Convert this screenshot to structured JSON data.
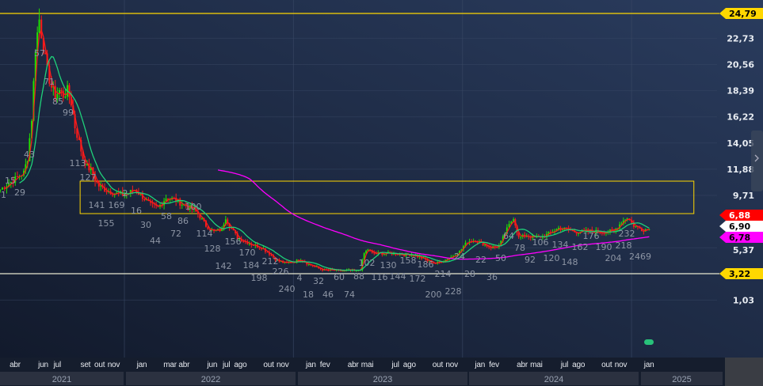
{
  "chart_data": {
    "type": "candlestick",
    "ylim": [
      0,
      25.5
    ],
    "y_ticks": [
      "22,73",
      "20,56",
      "18,39",
      "16,22",
      "14,05",
      "11,88",
      "9,71",
      "5,37",
      "1,03"
    ],
    "y_tick_values": [
      22.73,
      20.56,
      18.39,
      16.22,
      14.05,
      11.88,
      9.71,
      5.37,
      1.03
    ],
    "grid": true,
    "month_labels": [
      {
        "label": "abr",
        "date": "2021-04-01"
      },
      {
        "label": "jun",
        "date": "2021-06-01"
      },
      {
        "label": "jul",
        "date": "2021-07-01"
      },
      {
        "label": "set",
        "date": "2021-09-01"
      },
      {
        "label": "out",
        "date": "2021-10-01"
      },
      {
        "label": "nov",
        "date": "2021-11-01"
      },
      {
        "label": "jan",
        "date": "2022-01-01"
      },
      {
        "label": "mar",
        "date": "2022-03-01"
      },
      {
        "label": "abr",
        "date": "2022-04-01"
      },
      {
        "label": "jun",
        "date": "2022-06-01"
      },
      {
        "label": "jul",
        "date": "2022-07-01"
      },
      {
        "label": "ago",
        "date": "2022-08-01"
      },
      {
        "label": "out",
        "date": "2022-10-01"
      },
      {
        "label": "nov",
        "date": "2022-11-01"
      },
      {
        "label": "jan",
        "date": "2023-01-01"
      },
      {
        "label": "fev",
        "date": "2023-02-01"
      },
      {
        "label": "abr",
        "date": "2023-04-01"
      },
      {
        "label": "mai",
        "date": "2023-05-01"
      },
      {
        "label": "jul",
        "date": "2023-07-01"
      },
      {
        "label": "ago",
        "date": "2023-08-01"
      },
      {
        "label": "out",
        "date": "2023-10-01"
      },
      {
        "label": "nov",
        "date": "2023-11-01"
      },
      {
        "label": "jan",
        "date": "2024-01-01"
      },
      {
        "label": "fev",
        "date": "2024-02-01"
      },
      {
        "label": "abr",
        "date": "2024-04-01"
      },
      {
        "label": "mai",
        "date": "2024-05-01"
      },
      {
        "label": "jul",
        "date": "2024-07-01"
      },
      {
        "label": "ago",
        "date": "2024-08-01"
      },
      {
        "label": "out",
        "date": "2024-10-01"
      },
      {
        "label": "nov",
        "date": "2024-11-01"
      },
      {
        "label": "jan",
        "date": "2025-01-01"
      }
    ],
    "years": [
      "2021",
      "2022",
      "2023",
      "2024",
      "2025"
    ],
    "closes": [
      [
        "2021-03-08",
        10.2
      ],
      [
        "2021-04-28",
        11.6
      ],
      [
        "2021-05-06",
        12.8
      ],
      [
        "2021-05-15",
        16.1
      ],
      [
        "2021-05-23",
        22.0
      ],
      [
        "2021-06-01",
        24.3
      ],
      [
        "2021-06-10",
        22.0
      ],
      [
        "2021-06-18",
        20.0
      ],
      [
        "2021-06-27",
        18.7
      ],
      [
        "2021-07-05",
        18.0
      ],
      [
        "2021-07-14",
        18.4
      ],
      [
        "2021-07-22",
        18.0
      ],
      [
        "2021-07-31",
        18.4
      ],
      [
        "2021-08-09",
        17.4
      ],
      [
        "2021-08-17",
        15.4
      ],
      [
        "2021-08-26",
        14.1
      ],
      [
        "2021-09-04",
        12.8
      ],
      [
        "2021-09-13",
        12.1
      ],
      [
        "2021-09-21",
        11.8
      ],
      [
        "2021-09-30",
        11.0
      ],
      [
        "2021-10-08",
        10.5
      ],
      [
        "2021-10-16",
        10.3
      ],
      [
        "2021-11-03",
        10.0
      ],
      [
        "2021-11-20",
        9.8
      ],
      [
        "2021-12-07",
        9.8
      ],
      [
        "2021-12-24",
        10.2
      ],
      [
        "2022-01-11",
        9.6
      ],
      [
        "2022-01-28",
        8.9
      ],
      [
        "2022-02-14",
        8.7
      ],
      [
        "2022-03-01",
        9.5
      ],
      [
        "2022-03-18",
        9.4
      ],
      [
        "2022-04-05",
        9.0
      ],
      [
        "2022-04-22",
        8.7
      ],
      [
        "2022-05-09",
        8.2
      ],
      [
        "2022-05-26",
        7.2
      ],
      [
        "2022-06-13",
        6.7
      ],
      [
        "2022-06-30",
        6.9
      ],
      [
        "2022-07-08",
        7.9
      ],
      [
        "2022-07-16",
        7.2
      ],
      [
        "2022-08-03",
        6.2
      ],
      [
        "2022-08-20",
        5.9
      ],
      [
        "2022-09-07",
        5.6
      ],
      [
        "2022-09-24",
        5.4
      ],
      [
        "2022-10-11",
        4.9
      ],
      [
        "2022-10-28",
        4.3
      ],
      [
        "2022-11-14",
        4.1
      ],
      [
        "2022-12-01",
        4.2
      ],
      [
        "2022-12-18",
        4.4
      ],
      [
        "2023-01-05",
        4.0
      ],
      [
        "2023-01-22",
        3.74
      ],
      [
        "2023-02-08",
        3.5
      ],
      [
        "2023-02-25",
        3.5
      ],
      [
        "2023-03-13",
        3.45
      ],
      [
        "2023-03-30",
        3.5
      ],
      [
        "2023-04-16",
        3.45
      ],
      [
        "2023-04-25",
        3.6
      ],
      [
        "2023-05-03",
        4.9
      ],
      [
        "2023-05-11",
        5.25
      ],
      [
        "2023-05-20",
        4.9
      ],
      [
        "2023-06-07",
        4.9
      ],
      [
        "2023-06-24",
        4.9
      ],
      [
        "2023-07-10",
        4.9
      ],
      [
        "2023-07-28",
        4.8
      ],
      [
        "2023-08-14",
        4.8
      ],
      [
        "2023-09-01",
        4.6
      ],
      [
        "2023-09-18",
        4.3
      ],
      [
        "2023-10-05",
        4.07
      ],
      [
        "2023-10-22",
        4.3
      ],
      [
        "2023-11-08",
        4.6
      ],
      [
        "2023-11-26",
        5.05
      ],
      [
        "2023-12-13",
        5.9
      ],
      [
        "2023-12-30",
        6.0
      ],
      [
        "2024-01-16",
        5.7
      ],
      [
        "2024-02-03",
        5.4
      ],
      [
        "2024-02-20",
        5.5
      ],
      [
        "2024-03-07",
        6.9
      ],
      [
        "2024-03-21",
        7.9
      ],
      [
        "2024-04-02",
        6.2
      ],
      [
        "2024-04-19",
        6.4
      ],
      [
        "2024-05-06",
        6.2
      ],
      [
        "2024-05-23",
        6.3
      ],
      [
        "2024-06-10",
        6.6
      ],
      [
        "2024-06-27",
        7.0
      ],
      [
        "2024-07-14",
        6.9
      ],
      [
        "2024-07-31",
        6.7
      ],
      [
        "2024-08-17",
        6.7
      ],
      [
        "2024-09-04",
        6.75
      ],
      [
        "2024-09-21",
        6.7
      ],
      [
        "2024-10-08",
        6.7
      ],
      [
        "2024-10-25",
        6.75
      ],
      [
        "2024-11-11",
        7.5
      ],
      [
        "2024-11-23",
        7.9
      ],
      [
        "2024-12-07",
        7.2
      ],
      [
        "2024-12-24",
        6.9
      ],
      [
        "2025-01-10",
        6.9
      ]
    ],
    "horizontal_lines": [
      {
        "value": 24.79,
        "label": "24,79",
        "color": "#ffd700"
      },
      {
        "value": 3.22,
        "label": "3,22",
        "color": "#ffd700"
      }
    ],
    "rectangle": {
      "price_low": 8.2,
      "price_high": 10.89,
      "date_start": "2021-08-28",
      "date_end": "2025-04-15",
      "color": "#ffd700"
    },
    "price_tags": [
      {
        "label": "6,88",
        "value": 6.88,
        "color": "#ff0000",
        "text_color": "#ffffff"
      },
      {
        "label": "6,90",
        "value": 6.9,
        "color": "#ffffff",
        "text_color": "#000000"
      },
      {
        "label": "6,78",
        "value": 6.78,
        "color": "#ff00ff",
        "text_color": "#000000"
      }
    ],
    "series_colors": {
      "up": "#22e000",
      "down": "#ff1a1a",
      "short_ma": "#ff1a1a",
      "mid_ma": "#1fd17a",
      "long_ma": "#ff00ff"
    },
    "annotations": [
      "1",
      "15",
      "29",
      "43",
      "57",
      "71",
      "85",
      "99",
      "113",
      "127",
      "141",
      "155",
      "169",
      "2",
      "16",
      "30",
      "44",
      "58",
      "72",
      "86",
      "100",
      "114",
      "128",
      "142",
      "156",
      "170",
      "184",
      "198",
      "212",
      "226",
      "240",
      "4",
      "18",
      "32",
      "46",
      "60",
      "74",
      "88",
      "102",
      "116",
      "130",
      "144",
      "158",
      "172",
      "186",
      "200",
      "214",
      "228",
      "24",
      "28",
      "22",
      "36",
      "50",
      "64",
      "78",
      "92",
      "106",
      "120",
      "134",
      "148",
      "162",
      "176",
      "190",
      "204",
      "218",
      "232",
      "2469"
    ]
  }
}
